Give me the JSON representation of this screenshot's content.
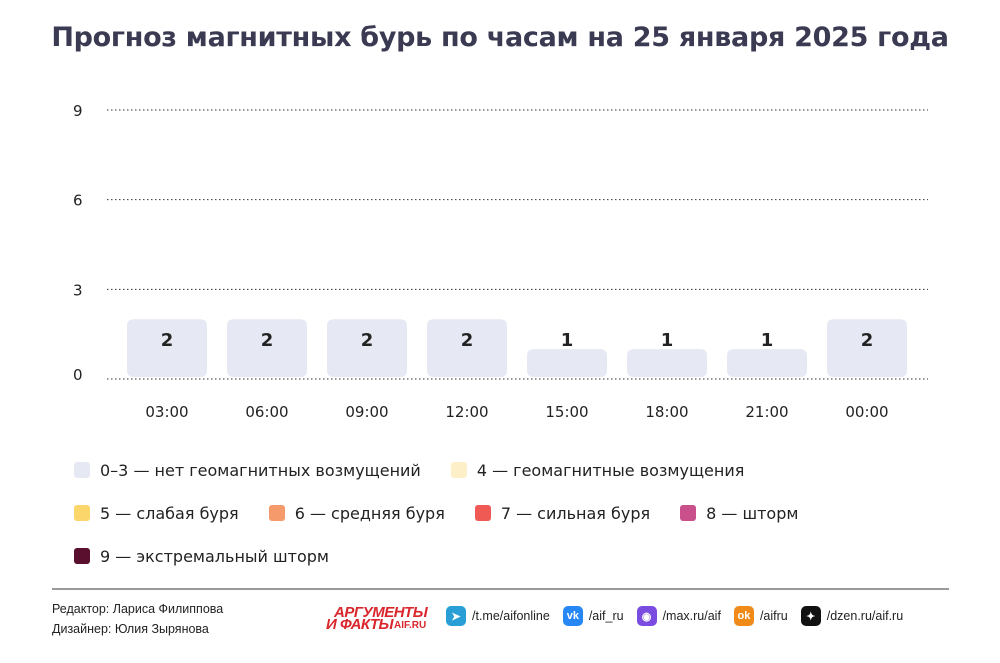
{
  "title": "Прогноз магнитных бурь по часам на 25 января 2025 года",
  "chart_data": {
    "type": "bar",
    "categories": [
      "03:00",
      "06:00",
      "09:00",
      "12:00",
      "15:00",
      "18:00",
      "21:00",
      "00:00"
    ],
    "values": [
      2,
      2,
      2,
      2,
      1,
      1,
      1,
      2
    ],
    "yticks": [
      0,
      3,
      6,
      9
    ],
    "ylim": [
      0,
      9
    ],
    "grid": true,
    "bar_color": "#e6e9f3",
    "legend": [
      {
        "label": "0–3 — нет геомагнитных возмущений",
        "color": "#e6e9f3"
      },
      {
        "label": "4 — геомагнитные возмущения",
        "color": "#fdf0c9"
      },
      {
        "label": "5 — слабая буря",
        "color": "#fbd66b"
      },
      {
        "label": "6 — средняя буря",
        "color": "#f59a6b"
      },
      {
        "label": "7 — сильная буря",
        "color": "#ef5a55"
      },
      {
        "label": "8 — шторм",
        "color": "#c9508a"
      },
      {
        "label": "9 — экстремальный шторм",
        "color": "#5a0f2e"
      }
    ]
  },
  "footer": {
    "editor": "Редактор: Лариса Филиппова",
    "designer": "Дизайнер: Юлия Зырянова",
    "logo_top": "АРГУМЕНТЫ",
    "logo_bottom": "И ФАКТЫ",
    "logo_sub": "AIF.RU",
    "socials": [
      {
        "icon": "telegram-icon",
        "text": "/t.me/aifonline",
        "color": "#2a9fd6"
      },
      {
        "icon": "vk-icon",
        "text": "/aif_ru",
        "color": "#2787f5"
      },
      {
        "icon": "max-icon",
        "text": "/max.ru/aif",
        "color": "#7b4ce0"
      },
      {
        "icon": "odnoklassniki-icon",
        "text": "/aifru",
        "color": "#f08b1a"
      },
      {
        "icon": "dzen-icon",
        "text": "/dzen.ru/aif.ru",
        "color": "#111111"
      }
    ]
  }
}
